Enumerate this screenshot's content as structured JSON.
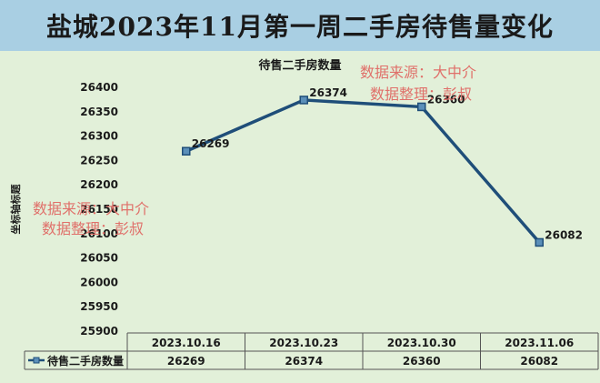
{
  "banner": {
    "title": "盐城2023年11月第一周二手房待售量变化"
  },
  "chart_data": {
    "type": "line",
    "title": "待售二手房数量",
    "ylabel": "坐标轴标题",
    "categories": [
      "2023.10.16",
      "2023.10.23",
      "2023.10.30",
      "2023.11.06"
    ],
    "series": [
      {
        "name": "待售二手房数量",
        "values": [
          26269,
          26374,
          26360,
          26082
        ],
        "color": "#1f4e79"
      }
    ],
    "ylim": [
      25900,
      26400
    ],
    "yticks": [
      25900,
      25950,
      26000,
      26050,
      26100,
      26150,
      26200,
      26250,
      26300,
      26350,
      26400
    ],
    "data_table": true,
    "grid": false
  },
  "watermarks": {
    "top_right": [
      "数据来源：大中介",
      "数据整理：彭叔"
    ],
    "left": [
      "数据来源：大中介",
      "数据整理：彭叔"
    ]
  }
}
